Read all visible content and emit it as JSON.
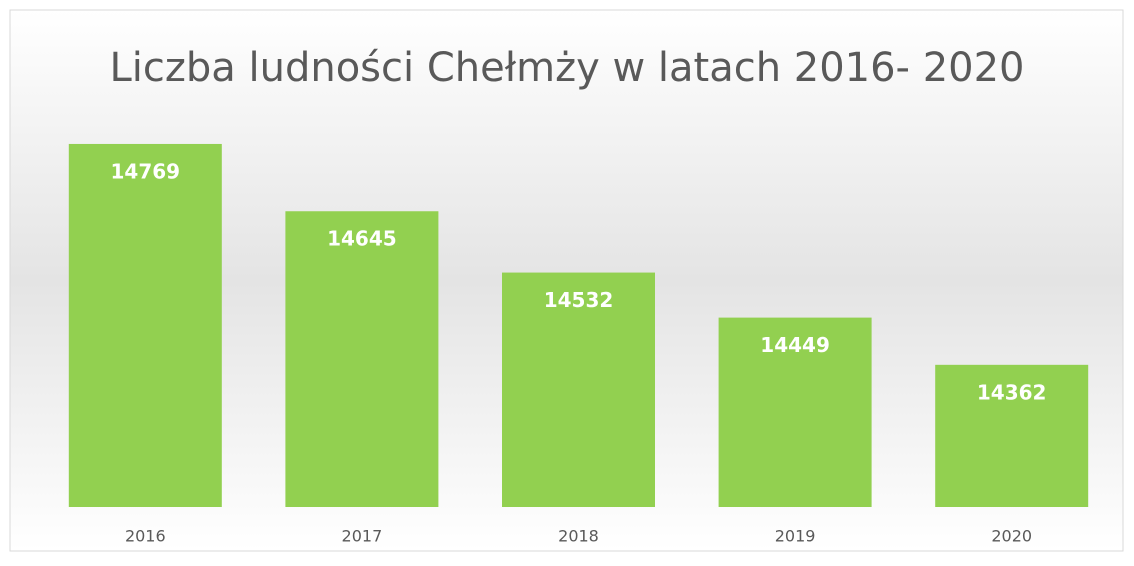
{
  "chart_data": {
    "type": "bar",
    "title": "Liczba ludności Chełmży w latach 2016- 2020",
    "categories": [
      "2016",
      "2017",
      "2018",
      "2019",
      "2020"
    ],
    "values": [
      14769,
      14645,
      14532,
      14449,
      14362
    ],
    "color": "#92d050",
    "ylim": [
      14100,
      14850
    ]
  }
}
